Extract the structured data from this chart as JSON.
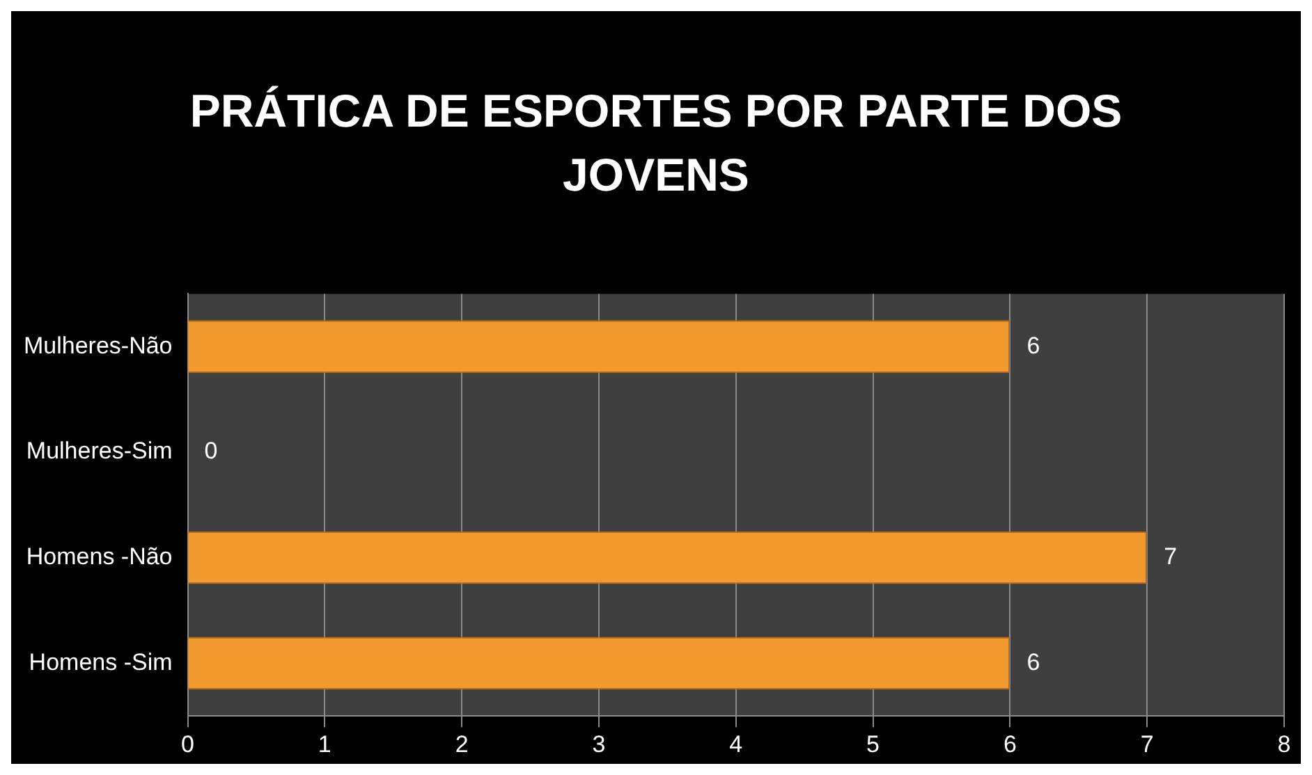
{
  "chart_data": {
    "type": "bar",
    "title": "PRÁTICA DE ESPORTES POR PARTE DOS JOVENS",
    "orientation": "horizontal",
    "categories": [
      "Mulheres-Não",
      "Mulheres-Sim",
      "Homens -Não",
      "Homens -Sim"
    ],
    "values": [
      6,
      0,
      7,
      6
    ],
    "color": "#f39a2e",
    "xlim": [
      0,
      8
    ],
    "xticks": [
      0,
      1,
      2,
      3,
      4,
      5,
      6,
      7,
      8
    ],
    "grid": "x",
    "data_labels": true,
    "legend": false
  }
}
